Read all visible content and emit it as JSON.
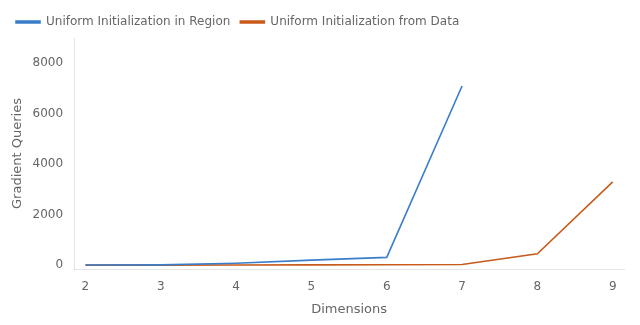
{
  "chart_data": {
    "type": "line",
    "x": [
      2,
      3,
      4,
      5,
      6,
      7,
      8,
      9
    ],
    "series": [
      {
        "name": "Uniform Initialization in Region",
        "color": "#3A7DC9",
        "values": [
          10,
          15,
          80,
          200,
          310,
          7100,
          null,
          null
        ]
      },
      {
        "name": "Uniform Initialization from Data",
        "color": "#C85A1A",
        "values": [
          5,
          5,
          10,
          15,
          20,
          30,
          450,
          3300
        ]
      }
    ],
    "xlabel": "Dimensions",
    "ylabel": "Gradient Queries",
    "xlim": [
      1.85,
      9.15
    ],
    "ylim": [
      -150,
      9000
    ],
    "xticks": [
      2,
      3,
      4,
      5,
      6,
      7,
      8,
      9
    ],
    "yticks": [
      0,
      2000,
      4000,
      6000,
      8000
    ],
    "grid": false,
    "legend": "upper left"
  }
}
